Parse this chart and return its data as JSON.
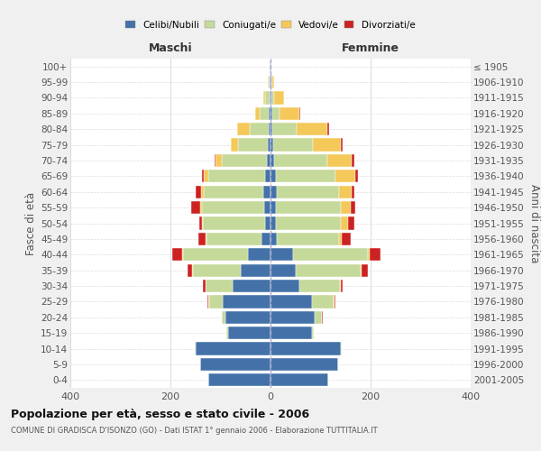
{
  "age_groups": [
    "0-4",
    "5-9",
    "10-14",
    "15-19",
    "20-24",
    "25-29",
    "30-34",
    "35-39",
    "40-44",
    "45-49",
    "50-54",
    "55-59",
    "60-64",
    "65-69",
    "70-74",
    "75-79",
    "80-84",
    "85-89",
    "90-94",
    "95-99",
    "100+"
  ],
  "birth_years": [
    "2001-2005",
    "1996-2000",
    "1991-1995",
    "1986-1990",
    "1981-1985",
    "1976-1980",
    "1971-1975",
    "1966-1970",
    "1961-1965",
    "1956-1960",
    "1951-1955",
    "1946-1950",
    "1941-1945",
    "1936-1940",
    "1931-1935",
    "1926-1930",
    "1921-1925",
    "1916-1920",
    "1911-1915",
    "1906-1910",
    "≤ 1905"
  ],
  "male": {
    "celibi": [
      125,
      140,
      150,
      85,
      90,
      95,
      75,
      60,
      45,
      18,
      10,
      12,
      14,
      10,
      8,
      5,
      3,
      3,
      2,
      1,
      1
    ],
    "coniugati": [
      0,
      0,
      1,
      3,
      8,
      28,
      55,
      95,
      130,
      110,
      125,
      125,
      120,
      115,
      90,
      60,
      38,
      18,
      8,
      2,
      0
    ],
    "vedovi": [
      0,
      0,
      0,
      0,
      0,
      1,
      0,
      1,
      1,
      2,
      2,
      3,
      5,
      8,
      12,
      15,
      25,
      10,
      5,
      2,
      0
    ],
    "divorziati": [
      0,
      0,
      0,
      0,
      0,
      3,
      5,
      10,
      20,
      15,
      5,
      18,
      10,
      4,
      2,
      0,
      0,
      0,
      0,
      0,
      0
    ]
  },
  "female": {
    "nubili": [
      115,
      135,
      140,
      82,
      88,
      82,
      58,
      50,
      45,
      12,
      10,
      10,
      12,
      10,
      8,
      5,
      3,
      3,
      2,
      1,
      1
    ],
    "coniugate": [
      0,
      1,
      2,
      5,
      15,
      45,
      80,
      130,
      150,
      125,
      130,
      130,
      125,
      120,
      105,
      80,
      50,
      15,
      5,
      2,
      0
    ],
    "vedove": [
      0,
      0,
      0,
      0,
      0,
      1,
      2,
      2,
      4,
      5,
      15,
      20,
      25,
      40,
      50,
      55,
      60,
      40,
      20,
      5,
      1
    ],
    "divorziate": [
      0,
      0,
      0,
      0,
      1,
      2,
      5,
      12,
      20,
      18,
      12,
      10,
      5,
      5,
      5,
      5,
      5,
      2,
      0,
      0,
      0
    ]
  },
  "colors": {
    "celibi": "#4472a8",
    "coniugati": "#c5d99a",
    "vedovi": "#f5c85a",
    "divorziati": "#cc2222"
  },
  "xlim": 400,
  "title": "Popolazione per età, sesso e stato civile - 2006",
  "subtitle": "COMUNE DI GRADISCA D'ISONZO (GO) - Dati ISTAT 1° gennaio 2006 - Elaborazione TUTTITALIA.IT",
  "ylabel": "Fasce di età",
  "ylabel_right": "Anni di nascita",
  "bg_color": "#f0f0f0",
  "plot_bg": "#ffffff"
}
